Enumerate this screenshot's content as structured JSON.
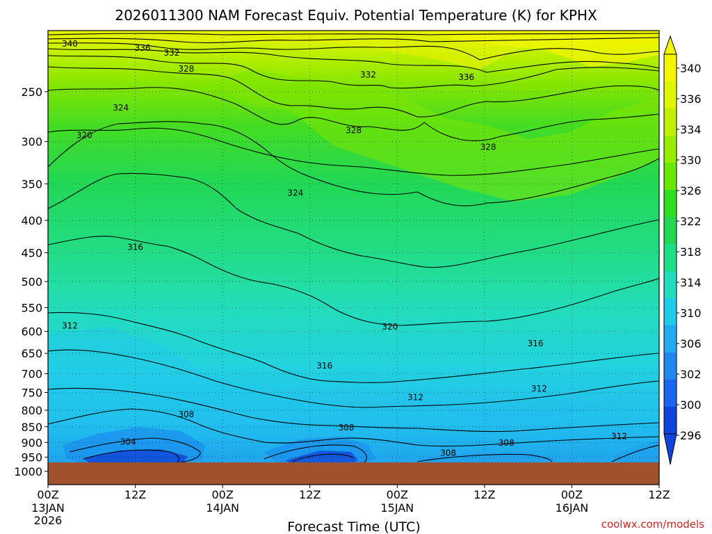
{
  "chart_data": {
    "type": "heatmap",
    "title": "2026011300 NAM Forecast Equiv. Potential Temperature (K) for KPHX",
    "xlabel": "Forecast Time (UTC)",
    "ylabel": "",
    "y_ticks": [
      250,
      300,
      350,
      400,
      450,
      500,
      550,
      600,
      650,
      700,
      750,
      800,
      850,
      900,
      950,
      1000
    ],
    "y_range_hPa": [
      200,
      1050
    ],
    "ground_level_hPa": 975,
    "x_range_hours": [
      0,
      84
    ],
    "x_ticks": [
      {
        "hour": 0,
        "label": "00Z",
        "sub": "13JAN",
        "sub2": "2026"
      },
      {
        "hour": 12,
        "label": "12Z",
        "sub": "",
        "sub2": ""
      },
      {
        "hour": 24,
        "label": "00Z",
        "sub": "14JAN",
        "sub2": ""
      },
      {
        "hour": 36,
        "label": "12Z",
        "sub": "",
        "sub2": ""
      },
      {
        "hour": 48,
        "label": "00Z",
        "sub": "15JAN",
        "sub2": ""
      },
      {
        "hour": 60,
        "label": "12Z",
        "sub": "",
        "sub2": ""
      },
      {
        "hour": 72,
        "label": "00Z",
        "sub": "16JAN",
        "sub2": ""
      },
      {
        "hour": 84,
        "label": "12Z",
        "sub": "",
        "sub2": ""
      }
    ],
    "colorbar": {
      "labels": [
        340,
        336,
        334,
        330,
        326,
        322,
        318,
        314,
        310,
        306,
        302,
        300,
        296
      ],
      "colors": [
        "#f5f500",
        "#e0f500",
        "#c0f000",
        "#99ee00",
        "#66e800",
        "#33dd22",
        "#22d855",
        "#22dd88",
        "#22ddbb",
        "#22cce8",
        "#22aaee",
        "#2288ee",
        "#1a66ee",
        "#1144dd"
      ]
    },
    "contour_labels": [
      {
        "text": "340",
        "hour": 3.0,
        "p": 210
      },
      {
        "text": "336",
        "hour": 13.0,
        "p": 213
      },
      {
        "text": "332",
        "hour": 17.0,
        "p": 217
      },
      {
        "text": "328",
        "hour": 19.0,
        "p": 230
      },
      {
        "text": "332",
        "hour": 44.0,
        "p": 235
      },
      {
        "text": "336",
        "hour": 57.5,
        "p": 237
      },
      {
        "text": "324",
        "hour": 10.0,
        "p": 265
      },
      {
        "text": "328",
        "hour": 42.0,
        "p": 288
      },
      {
        "text": "328",
        "hour": 60.5,
        "p": 306
      },
      {
        "text": "320",
        "hour": 5.0,
        "p": 293
      },
      {
        "text": "324",
        "hour": 34.0,
        "p": 362
      },
      {
        "text": "316",
        "hour": 12.0,
        "p": 441
      },
      {
        "text": "320",
        "hour": 47.0,
        "p": 590
      },
      {
        "text": "312",
        "hour": 3.0,
        "p": 588
      },
      {
        "text": "316",
        "hour": 67.0,
        "p": 627
      },
      {
        "text": "316",
        "hour": 38.0,
        "p": 680
      },
      {
        "text": "312",
        "hour": 67.5,
        "p": 740
      },
      {
        "text": "312",
        "hour": 50.5,
        "p": 763
      },
      {
        "text": "308",
        "hour": 19.0,
        "p": 812
      },
      {
        "text": "308",
        "hour": 41.0,
        "p": 853
      },
      {
        "text": "304",
        "hour": 11.0,
        "p": 898
      },
      {
        "text": "308",
        "hour": 63.0,
        "p": 902
      },
      {
        "text": "312",
        "hour": 78.5,
        "p": 880
      },
      {
        "text": "308",
        "hour": 55.0,
        "p": 935
      }
    ],
    "credit": "coolwx.com/models"
  }
}
